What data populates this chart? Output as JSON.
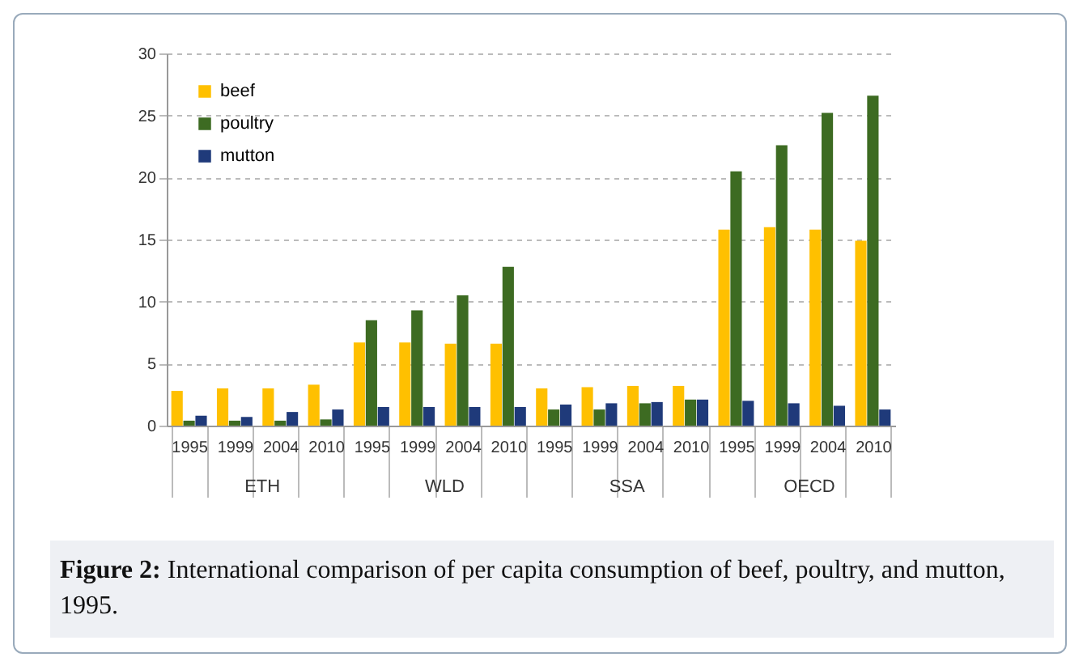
{
  "chart_data": {
    "type": "bar",
    "categories": [
      "1995",
      "1999",
      "2004",
      "2010",
      "1995",
      "1999",
      "2004",
      "2010",
      "1995",
      "1999",
      "2004",
      "2010",
      "1995",
      "1999",
      "2004",
      "2010"
    ],
    "series": [
      {
        "name": "beef",
        "color": "#ffc000",
        "values": [
          2.8,
          3.0,
          3.0,
          3.3,
          6.7,
          6.7,
          6.6,
          6.6,
          3.0,
          3.1,
          3.2,
          3.2,
          15.8,
          16.0,
          15.8,
          14.9
        ]
      },
      {
        "name": "poultry",
        "color": "#3d6b22",
        "values": [
          0.4,
          0.4,
          0.4,
          0.5,
          8.5,
          9.3,
          10.5,
          12.8,
          1.3,
          1.3,
          1.8,
          2.1,
          20.5,
          22.6,
          25.2,
          26.6
        ]
      },
      {
        "name": "mutton",
        "color": "#1f3a7a",
        "values": [
          0.8,
          0.7,
          1.1,
          1.3,
          1.5,
          1.5,
          1.5,
          1.5,
          1.7,
          1.8,
          1.9,
          2.1,
          2.0,
          1.8,
          1.6,
          1.3
        ]
      }
    ],
    "ylim": [
      0,
      30
    ],
    "yticks": [
      0,
      5,
      10,
      15,
      20,
      25,
      30
    ],
    "grid": "y",
    "legend": "top left",
    "annotations": [
      "ETH",
      "WLD",
      "SSA",
      "OECD",
      "Figure 2: International comparison of per capita consumption of beef, poultry, and mutton, 1995."
    ]
  }
}
